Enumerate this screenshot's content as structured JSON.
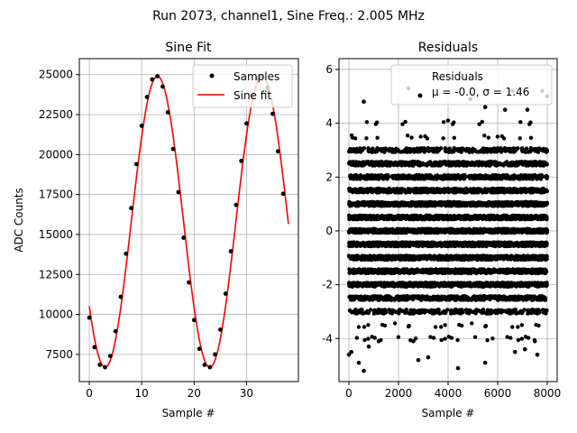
{
  "figure": {
    "suptitle": "Run 2073, channel1, Sine Freq.: 2.005 MHz"
  },
  "colors": {
    "samples": "#000000",
    "fit": "#ff0000",
    "grid": "#b0b0b0",
    "residuals": "#000000"
  },
  "chart_data": [
    {
      "type": "line",
      "title": "Sine Fit",
      "xlabel": "Sample #",
      "ylabel": "ADC Counts",
      "xlim": [
        -1.9,
        39.9
      ],
      "ylim": [
        5800,
        26000
      ],
      "xticks": [
        0,
        10,
        20,
        30
      ],
      "yticks": [
        7500,
        10000,
        12500,
        15000,
        17500,
        20000,
        22500,
        25000
      ],
      "ytick_labels": [
        "7500",
        "10000",
        "12500",
        "15000",
        "17500",
        "20000",
        "22500",
        "25000"
      ],
      "grid": true,
      "legend": {
        "placement": "upper right",
        "entries": [
          "Samples",
          "Sine fit"
        ]
      },
      "series": [
        {
          "name": "Samples",
          "marker": "dot",
          "x": [
            0,
            1,
            2,
            3,
            4,
            5,
            6,
            7,
            8,
            9,
            10,
            11,
            12,
            13,
            14,
            15,
            16,
            17,
            18,
            19,
            20,
            21,
            22,
            23,
            24,
            25,
            26,
            27,
            28,
            29,
            30,
            31,
            32,
            33,
            34,
            35,
            36,
            37
          ],
          "y": [
            9800,
            7950,
            6850,
            6700,
            7400,
            8950,
            11100,
            13800,
            16650,
            19400,
            21800,
            23600,
            24700,
            24900,
            24250,
            22650,
            20350,
            17650,
            14800,
            12000,
            9650,
            7850,
            6850,
            6700,
            7500,
            9050,
            11300,
            13950,
            16850,
            19600,
            21950,
            23700,
            24750,
            24900,
            24200,
            22550,
            20200,
            17550
          ]
        },
        {
          "name": "Sine fit",
          "line": "solid",
          "model": {
            "amplitude": 9100,
            "offset": 15800,
            "period_samples": 19.96,
            "phase_peak_sample": 13.0
          },
          "x_range": [
            0,
            38
          ]
        }
      ]
    },
    {
      "type": "scatter",
      "title": "Residuals",
      "xlabel": "Sample #",
      "xlim": [
        -400,
        8400
      ],
      "ylim": [
        -5.6,
        6.4
      ],
      "xticks": [
        0,
        2000,
        4000,
        6000,
        8000
      ],
      "yticks": [
        -4,
        -2,
        0,
        2,
        4,
        6
      ],
      "grid": true,
      "legend": {
        "placement": "upper right",
        "entries": [
          "Residuals"
        ],
        "stats": "μ = -0.0, σ = 1.46"
      },
      "series": [
        {
          "name": "Residuals",
          "n_points": 8000,
          "mean": 0.0,
          "std": 1.46,
          "outliers": [
            [
              0,
              -4.6
            ],
            [
              100,
              -4.5
            ],
            [
              400,
              -4.9
            ],
            [
              600,
              -5.2
            ],
            [
              800,
              -4.3
            ],
            [
              1200,
              -4.1
            ],
            [
              2600,
              -4.1
            ],
            [
              2800,
              -4.8
            ],
            [
              3200,
              -4.7
            ],
            [
              4400,
              -5.1
            ],
            [
              5500,
              -4.9
            ],
            [
              6700,
              -4.5
            ],
            [
              7100,
              -4.4
            ],
            [
              7500,
              -4.1
            ],
            [
              7600,
              -4.6
            ],
            [
              600,
              4.8
            ],
            [
              2400,
              5.3
            ],
            [
              6600,
              5.2
            ],
            [
              7800,
              5.2
            ],
            [
              8000,
              5.0
            ],
            [
              4000,
              4.1
            ],
            [
              4900,
              4.9
            ],
            [
              5500,
              4.6
            ],
            [
              6300,
              4.5
            ],
            [
              7200,
              4.5
            ]
          ]
        }
      ]
    }
  ]
}
